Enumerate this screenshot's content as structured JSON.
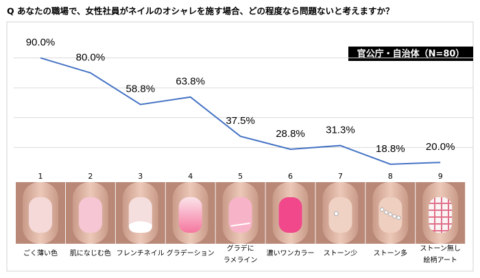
{
  "chart_data": {
    "type": "line",
    "title": "Q  あなたの職場で、女性社員がネイルのオシャレを施す場合、どの程度なら問題ないと考えますか？",
    "subtitle": "官公庁・自治体（N=80）",
    "categories": [
      "1",
      "2",
      "3",
      "4",
      "5",
      "6",
      "7",
      "8",
      "9"
    ],
    "category_names": [
      [
        "ごく薄い色"
      ],
      [
        "肌になじむ色"
      ],
      [
        "フレンチネイル"
      ],
      [
        "グラデーション"
      ],
      [
        "グラデに",
        "ラメライン"
      ],
      [
        "濃いワンカラー"
      ],
      [
        "ストーン少"
      ],
      [
        "ストーン多"
      ],
      [
        "ストーン無し",
        "絵柄アート"
      ]
    ],
    "values": [
      90.0,
      80.0,
      58.8,
      63.8,
      37.5,
      28.8,
      31.3,
      18.8,
      20.0
    ],
    "value_labels": [
      "90.0%",
      "80.0%",
      "58.8%",
      "63.8%",
      "37.5%",
      "28.8%",
      "31.3%",
      "18.8%",
      "20.0%"
    ],
    "color": "#4472c4",
    "ylim": [
      10,
      110
    ],
    "yticks": [
      30,
      50,
      70,
      90
    ],
    "grid": true
  }
}
